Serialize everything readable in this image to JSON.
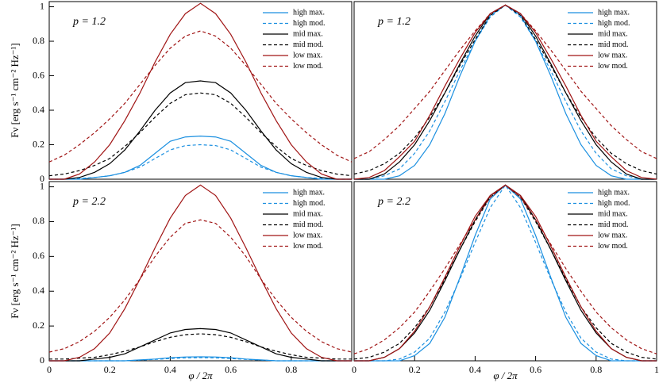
{
  "chart_data": [
    {
      "type": "line",
      "annotation": "p = 1.2",
      "ylabel": "Fν [erg s⁻¹ cm⁻² Hz⁻¹]",
      "legend": "upper right",
      "x": [
        0,
        0.05,
        0.1,
        0.15,
        0.2,
        0.25,
        0.3,
        0.35,
        0.4,
        0.45,
        0.5,
        0.55,
        0.6,
        0.65,
        0.7,
        0.75,
        0.8,
        0.85,
        0.9,
        0.95,
        1
      ],
      "xlim": [
        0,
        1
      ],
      "ylim": [
        0,
        1.03
      ],
      "yticks": [
        0,
        0.2,
        0.4,
        0.6,
        0.8,
        1
      ],
      "series": [
        {
          "name": "high max.",
          "color": "#1a8fe0",
          "dash": false,
          "values": [
            0,
            0,
            0,
            0.01,
            0.02,
            0.04,
            0.08,
            0.15,
            0.22,
            0.245,
            0.25,
            0.245,
            0.22,
            0.15,
            0.08,
            0.04,
            0.02,
            0.01,
            0,
            0,
            0
          ]
        },
        {
          "name": "high mod.",
          "color": "#1a8fe0",
          "dash": true,
          "values": [
            0,
            0,
            0.005,
            0.01,
            0.02,
            0.04,
            0.07,
            0.12,
            0.17,
            0.195,
            0.2,
            0.195,
            0.17,
            0.12,
            0.07,
            0.04,
            0.02,
            0.01,
            0.005,
            0,
            0
          ]
        },
        {
          "name": "mid max.",
          "color": "#000000",
          "dash": false,
          "values": [
            0,
            0,
            0.01,
            0.04,
            0.09,
            0.17,
            0.28,
            0.4,
            0.5,
            0.56,
            0.57,
            0.56,
            0.5,
            0.4,
            0.28,
            0.17,
            0.09,
            0.04,
            0.01,
            0,
            0
          ]
        },
        {
          "name": "mid mod.",
          "color": "#000000",
          "dash": true,
          "values": [
            0.02,
            0.03,
            0.05,
            0.08,
            0.12,
            0.19,
            0.27,
            0.36,
            0.44,
            0.49,
            0.5,
            0.49,
            0.44,
            0.36,
            0.27,
            0.19,
            0.12,
            0.08,
            0.05,
            0.03,
            0.02
          ]
        },
        {
          "name": "low max.",
          "color": "#a01414",
          "dash": false,
          "values": [
            0,
            0,
            0.03,
            0.1,
            0.2,
            0.34,
            0.5,
            0.68,
            0.84,
            0.96,
            1.02,
            0.96,
            0.84,
            0.68,
            0.5,
            0.34,
            0.2,
            0.1,
            0.03,
            0,
            0
          ]
        },
        {
          "name": "low mod.",
          "color": "#a01414",
          "dash": true,
          "values": [
            0.1,
            0.14,
            0.2,
            0.27,
            0.35,
            0.44,
            0.55,
            0.66,
            0.76,
            0.83,
            0.86,
            0.83,
            0.76,
            0.66,
            0.55,
            0.44,
            0.35,
            0.27,
            0.2,
            0.14,
            0.1
          ]
        }
      ]
    },
    {
      "type": "line",
      "annotation": "p = 1.2",
      "legend": "upper right",
      "x": [
        0,
        0.05,
        0.1,
        0.15,
        0.2,
        0.25,
        0.3,
        0.35,
        0.4,
        0.45,
        0.5,
        0.55,
        0.6,
        0.65,
        0.7,
        0.75,
        0.8,
        0.85,
        0.9,
        0.95,
        1
      ],
      "xlim": [
        0,
        1
      ],
      "ylim": [
        0,
        1.03
      ],
      "series": [
        {
          "name": "high max.",
          "color": "#1a8fe0",
          "dash": false,
          "values": [
            0,
            0,
            0,
            0.02,
            0.08,
            0.2,
            0.38,
            0.6,
            0.8,
            0.95,
            1.01,
            0.95,
            0.8,
            0.6,
            0.38,
            0.2,
            0.08,
            0.02,
            0,
            0,
            0
          ]
        },
        {
          "name": "high mod.",
          "color": "#1a8fe0",
          "dash": true,
          "values": [
            0,
            0,
            0.02,
            0.06,
            0.15,
            0.28,
            0.45,
            0.63,
            0.8,
            0.94,
            1.01,
            0.94,
            0.8,
            0.63,
            0.45,
            0.28,
            0.15,
            0.06,
            0.02,
            0,
            0
          ]
        },
        {
          "name": "mid max.",
          "color": "#000000",
          "dash": false,
          "values": [
            0,
            0,
            0.03,
            0.1,
            0.2,
            0.34,
            0.5,
            0.67,
            0.83,
            0.96,
            1.01,
            0.96,
            0.83,
            0.67,
            0.5,
            0.34,
            0.2,
            0.1,
            0.03,
            0,
            0
          ]
        },
        {
          "name": "mid mod.",
          "color": "#000000",
          "dash": true,
          "values": [
            0.03,
            0.05,
            0.09,
            0.15,
            0.24,
            0.36,
            0.5,
            0.66,
            0.81,
            0.95,
            1.01,
            0.95,
            0.81,
            0.66,
            0.5,
            0.36,
            0.24,
            0.15,
            0.09,
            0.05,
            0.03
          ]
        },
        {
          "name": "low max.",
          "color": "#a01414",
          "dash": false,
          "values": [
            0,
            0.01,
            0.05,
            0.13,
            0.22,
            0.37,
            0.54,
            0.7,
            0.85,
            0.96,
            1.01,
            0.96,
            0.85,
            0.7,
            0.54,
            0.37,
            0.22,
            0.13,
            0.05,
            0.01,
            0
          ]
        },
        {
          "name": "low mod.",
          "color": "#a01414",
          "dash": true,
          "values": [
            0.12,
            0.16,
            0.23,
            0.31,
            0.41,
            0.51,
            0.63,
            0.75,
            0.86,
            0.96,
            1.01,
            0.96,
            0.86,
            0.75,
            0.63,
            0.51,
            0.41,
            0.31,
            0.23,
            0.16,
            0.12
          ]
        }
      ]
    },
    {
      "type": "line",
      "annotation": "p = 2.2",
      "ylabel": "Fν [erg s⁻¹ cm⁻² Hz⁻¹]",
      "xlabel": "φ / 2π",
      "legend": "upper right",
      "x": [
        0,
        0.05,
        0.1,
        0.15,
        0.2,
        0.25,
        0.3,
        0.35,
        0.4,
        0.45,
        0.5,
        0.55,
        0.6,
        0.65,
        0.7,
        0.75,
        0.8,
        0.85,
        0.9,
        0.95,
        1
      ],
      "xlim": [
        0,
        1
      ],
      "ylim": [
        0,
        1.03
      ],
      "yticks": [
        0,
        0.2,
        0.4,
        0.6,
        0.8,
        1
      ],
      "xticks": [
        0,
        0.2,
        0.4,
        0.6,
        0.8
      ],
      "series": [
        {
          "name": "high max.",
          "color": "#1a8fe0",
          "dash": false,
          "values": [
            0,
            0,
            0,
            0,
            0,
            0,
            0.005,
            0.01,
            0.018,
            0.022,
            0.023,
            0.022,
            0.018,
            0.01,
            0.005,
            0,
            0,
            0,
            0,
            0,
            0
          ]
        },
        {
          "name": "high mod.",
          "color": "#1a8fe0",
          "dash": true,
          "values": [
            0,
            0,
            0,
            0,
            0,
            0,
            0.004,
            0.008,
            0.013,
            0.017,
            0.018,
            0.017,
            0.013,
            0.008,
            0.004,
            0,
            0,
            0,
            0,
            0,
            0
          ]
        },
        {
          "name": "mid max.",
          "color": "#000000",
          "dash": false,
          "values": [
            0,
            0,
            0,
            0.01,
            0.02,
            0.04,
            0.08,
            0.12,
            0.16,
            0.18,
            0.185,
            0.18,
            0.16,
            0.12,
            0.08,
            0.04,
            0.02,
            0.01,
            0,
            0,
            0
          ]
        },
        {
          "name": "mid mod.",
          "color": "#000000",
          "dash": true,
          "values": [
            0.01,
            0.01,
            0.015,
            0.02,
            0.035,
            0.055,
            0.08,
            0.11,
            0.135,
            0.15,
            0.155,
            0.15,
            0.135,
            0.11,
            0.08,
            0.055,
            0.035,
            0.02,
            0.015,
            0.01,
            0.01
          ]
        },
        {
          "name": "low max.",
          "color": "#a01414",
          "dash": false,
          "values": [
            0,
            0,
            0.02,
            0.07,
            0.16,
            0.3,
            0.47,
            0.65,
            0.82,
            0.95,
            1.01,
            0.95,
            0.82,
            0.65,
            0.47,
            0.3,
            0.16,
            0.07,
            0.02,
            0,
            0
          ]
        },
        {
          "name": "low mod.",
          "color": "#a01414",
          "dash": true,
          "values": [
            0.05,
            0.07,
            0.11,
            0.17,
            0.25,
            0.35,
            0.47,
            0.6,
            0.71,
            0.79,
            0.81,
            0.79,
            0.71,
            0.6,
            0.47,
            0.35,
            0.25,
            0.17,
            0.11,
            0.07,
            0.05
          ]
        }
      ]
    },
    {
      "type": "line",
      "annotation": "p = 2.2",
      "xlabel": "φ / 2π",
      "legend": "upper right",
      "x": [
        0,
        0.05,
        0.1,
        0.15,
        0.2,
        0.25,
        0.3,
        0.35,
        0.4,
        0.45,
        0.5,
        0.55,
        0.6,
        0.65,
        0.7,
        0.75,
        0.8,
        0.85,
        0.9,
        0.95,
        1
      ],
      "xlim": [
        0,
        1
      ],
      "ylim": [
        0,
        1.03
      ],
      "xticks": [
        0,
        0.2,
        0.4,
        0.6,
        0.8,
        1
      ],
      "series": [
        {
          "name": "high max.",
          "color": "#1a8fe0",
          "dash": false,
          "values": [
            0,
            0,
            0,
            0,
            0.03,
            0.1,
            0.25,
            0.48,
            0.72,
            0.93,
            1.01,
            0.93,
            0.72,
            0.48,
            0.25,
            0.1,
            0.03,
            0,
            0,
            0,
            0
          ]
        },
        {
          "name": "high mod.",
          "color": "#1a8fe0",
          "dash": true,
          "values": [
            0,
            0,
            0,
            0.01,
            0.05,
            0.13,
            0.28,
            0.47,
            0.68,
            0.88,
            1.01,
            0.88,
            0.68,
            0.47,
            0.28,
            0.13,
            0.05,
            0.01,
            0,
            0,
            0
          ]
        },
        {
          "name": "mid max.",
          "color": "#000000",
          "dash": false,
          "values": [
            0,
            0,
            0.02,
            0.07,
            0.16,
            0.29,
            0.46,
            0.64,
            0.81,
            0.95,
            1.01,
            0.95,
            0.81,
            0.64,
            0.46,
            0.29,
            0.16,
            0.07,
            0.02,
            0,
            0
          ]
        },
        {
          "name": "mid mod.",
          "color": "#000000",
          "dash": true,
          "values": [
            0.01,
            0.02,
            0.05,
            0.1,
            0.19,
            0.31,
            0.47,
            0.64,
            0.8,
            0.94,
            1.01,
            0.94,
            0.8,
            0.64,
            0.47,
            0.31,
            0.19,
            0.1,
            0.05,
            0.02,
            0.01
          ]
        },
        {
          "name": "low max.",
          "color": "#a01414",
          "dash": false,
          "values": [
            0,
            0,
            0.02,
            0.07,
            0.17,
            0.31,
            0.48,
            0.66,
            0.83,
            0.95,
            1.01,
            0.95,
            0.83,
            0.66,
            0.48,
            0.31,
            0.17,
            0.07,
            0.02,
            0,
            0
          ]
        },
        {
          "name": "low mod.",
          "color": "#a01414",
          "dash": true,
          "values": [
            0.04,
            0.07,
            0.12,
            0.19,
            0.28,
            0.4,
            0.53,
            0.67,
            0.81,
            0.94,
            1.01,
            0.94,
            0.81,
            0.67,
            0.53,
            0.4,
            0.28,
            0.19,
            0.12,
            0.07,
            0.04
          ]
        }
      ]
    }
  ]
}
